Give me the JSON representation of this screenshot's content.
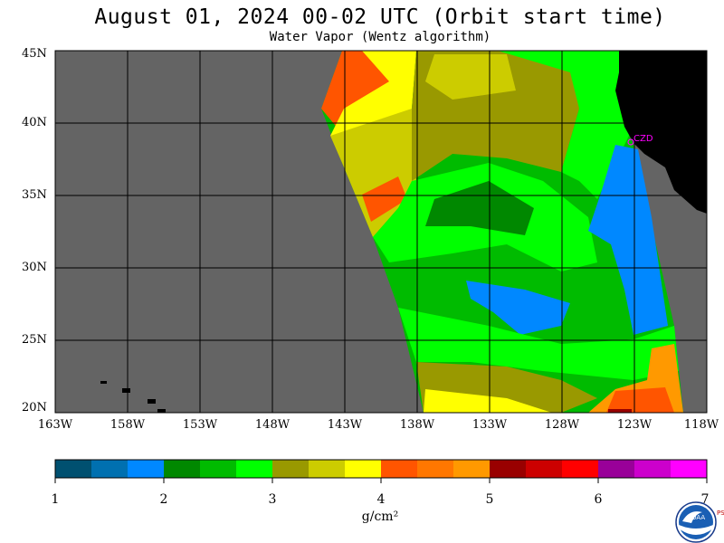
{
  "header": {
    "title": "August 01, 2024  00-02 UTC  (Orbit start time)",
    "subtitle": "Water Vapor (Wentz algorithm)"
  },
  "map": {
    "latitude_labels": [
      "45N",
      "40N",
      "35N",
      "30N",
      "25N",
      "20N"
    ],
    "longitude_labels": [
      "163W",
      "158W",
      "153W",
      "148W",
      "143W",
      "138W",
      "133W",
      "128W",
      "123W",
      "118W"
    ],
    "station_label": "CZD",
    "station_color": "#ff00ff",
    "land_color": "#000000",
    "nodata_color": "#646464"
  },
  "colorbar": {
    "tick_labels": [
      "1",
      "2",
      "3",
      "4",
      "5",
      "6",
      "7"
    ],
    "units": "g/cm²",
    "colors": [
      "#005070",
      "#0070b0",
      "#0088ff",
      "#008800",
      "#00bb00",
      "#00ff00",
      "#999900",
      "#cccc00",
      "#ffff00",
      "#ff5500",
      "#ff7700",
      "#ff9900",
      "#990000",
      "#cc0000",
      "#ff0000",
      "#990099",
      "#cc00cc",
      "#ff00ff"
    ]
  },
  "logo": {
    "text": "NOAA",
    "side_text": "PSL"
  }
}
